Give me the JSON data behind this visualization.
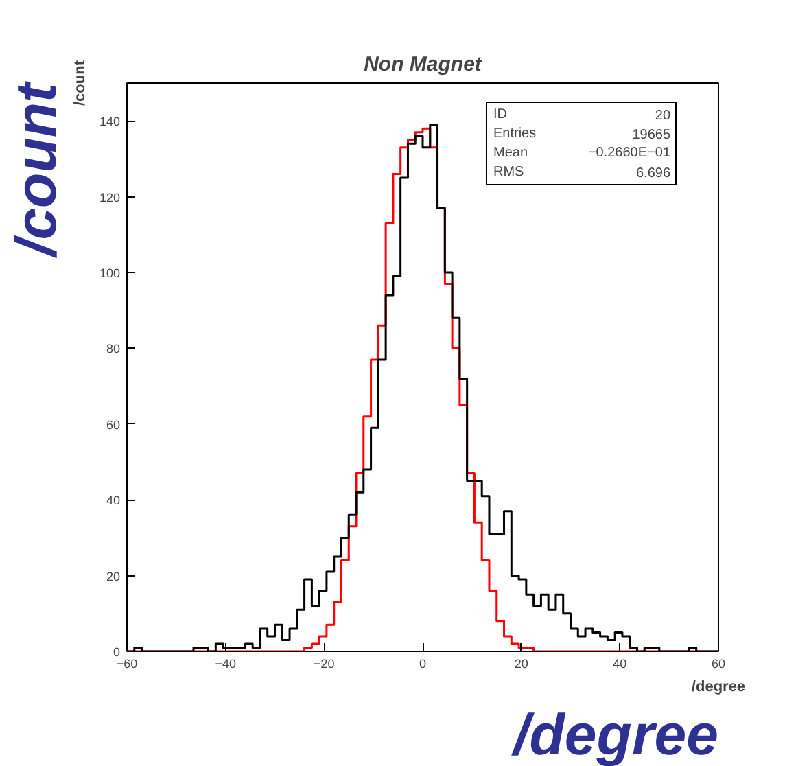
{
  "chart_data": {
    "type": "histogram",
    "title": "Non Magnet",
    "xlabel": "/degree",
    "ylabel": "/count",
    "bins": [
      -60,
      -58.5,
      -57,
      -55.5,
      -54,
      -52.5,
      -51,
      -49.5,
      -48,
      -46.5,
      -45,
      -43.5,
      -42,
      -40.5,
      -39,
      -37.5,
      -36,
      -34.5,
      -33,
      -31.5,
      -30,
      -28.5,
      -27,
      -25.5,
      -24,
      -22.5,
      -21,
      -19.5,
      -18,
      -16.5,
      -15,
      -13.5,
      -12,
      -10.5,
      -9,
      -7.5,
      -6,
      -4.5,
      -3,
      -1.5,
      0,
      1.5,
      3,
      4.5,
      6,
      7.5,
      9,
      10.5,
      12,
      13.5,
      15,
      16.5,
      18,
      19.5,
      21,
      22.5,
      24,
      25.5,
      27,
      28.5,
      30,
      31.5,
      33,
      34.5,
      36,
      37.5,
      39,
      40.5,
      42,
      43.5,
      45,
      46.5,
      48,
      49.5,
      51,
      52.5,
      54,
      55.5,
      57,
      58.5,
      60
    ],
    "series": [
      {
        "color": "#ff0000",
        "values": [
          0,
          0,
          0,
          0,
          0,
          0,
          0,
          0,
          0,
          0,
          0,
          0,
          0,
          0,
          0,
          0,
          0,
          0,
          0,
          0,
          0,
          0,
          0,
          0,
          1,
          2,
          4,
          7,
          13,
          24,
          33,
          47,
          62,
          77,
          86,
          113,
          126,
          133,
          135,
          137,
          138,
          133,
          117,
          97,
          80,
          65,
          47,
          34,
          24,
          16,
          8,
          4,
          2,
          1,
          1,
          0,
          0,
          0,
          0,
          0,
          0,
          0,
          0,
          0,
          0,
          0,
          0,
          0,
          0,
          0,
          0,
          0,
          0,
          0,
          0,
          0,
          0,
          0,
          0,
          0
        ]
      },
      {
        "color": "#000000",
        "values": [
          0,
          1,
          0,
          0,
          0,
          0,
          0,
          0,
          0,
          1,
          1,
          0,
          2,
          1,
          1,
          1,
          2,
          1,
          6,
          4,
          7,
          3,
          6,
          11,
          19,
          12,
          16,
          21,
          25,
          30,
          36,
          42,
          48,
          59,
          77,
          94,
          99,
          125,
          134,
          136,
          133,
          139,
          117,
          100,
          88,
          72,
          45,
          45,
          41,
          31,
          31,
          37,
          20,
          19,
          15,
          12,
          15,
          11,
          15,
          10,
          6,
          4,
          6,
          5,
          4,
          3,
          5,
          4,
          1,
          0,
          1,
          1,
          0,
          0,
          0,
          0,
          1,
          0,
          0,
          0
        ]
      }
    ],
    "xlim": [
      -60,
      60
    ],
    "ylim": [
      0,
      150
    ],
    "xticks": [
      -60,
      -40,
      -20,
      0,
      20,
      40,
      60
    ],
    "yticks": [
      0,
      20,
      40,
      60,
      80,
      100,
      120,
      140
    ],
    "annotations": [
      "ID 20",
      "Entries 19665",
      "Mean −0.2660E−01",
      "RMS 6.696",
      "/count",
      "/degree"
    ]
  }
}
